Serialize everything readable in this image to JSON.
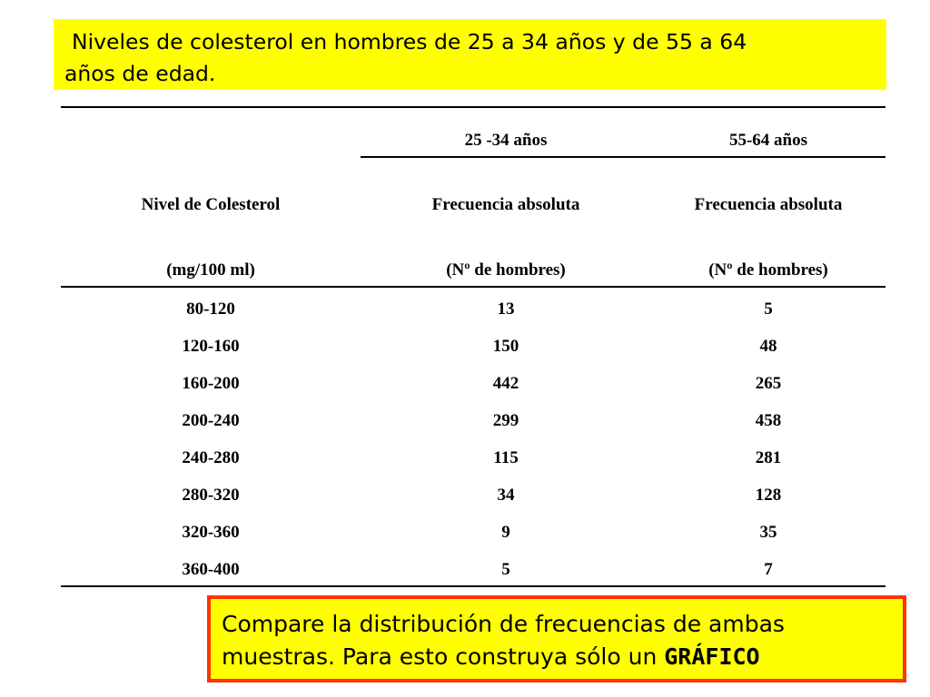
{
  "title": {
    "line1": "Niveles de colesterol en hombres de 25 a 34 años y  de 55 a 64",
    "line2": "años de edad."
  },
  "table": {
    "group_headers": [
      "25 -34 años",
      "55-64 años"
    ],
    "col1_header": [
      "Nivel de Colesterol",
      "(mg/100 ml)"
    ],
    "col2_header": [
      "Frecuencia absoluta",
      "(Nº de hombres)"
    ],
    "col3_header": [
      "Frecuencia absoluta",
      "(Nº de hombres)"
    ],
    "rows": [
      [
        "80-120",
        "13",
        "5"
      ],
      [
        "120-160",
        "150",
        "48"
      ],
      [
        "160-200",
        "442",
        "265"
      ],
      [
        "200-240",
        "299",
        "458"
      ],
      [
        "240-280",
        "115",
        "281"
      ],
      [
        "280-320",
        "34",
        "128"
      ],
      [
        "320-360",
        "9",
        "35"
      ],
      [
        "360-400",
        "5",
        "7"
      ]
    ]
  },
  "task": {
    "line1": "Compare la distribución de frecuencias de ambas",
    "line2_prefix": "muestras. Para esto construya sólo un ",
    "line2_emph": "GRÁFICO"
  },
  "colors": {
    "highlight": "#ffff00",
    "border": "#ff3300"
  }
}
